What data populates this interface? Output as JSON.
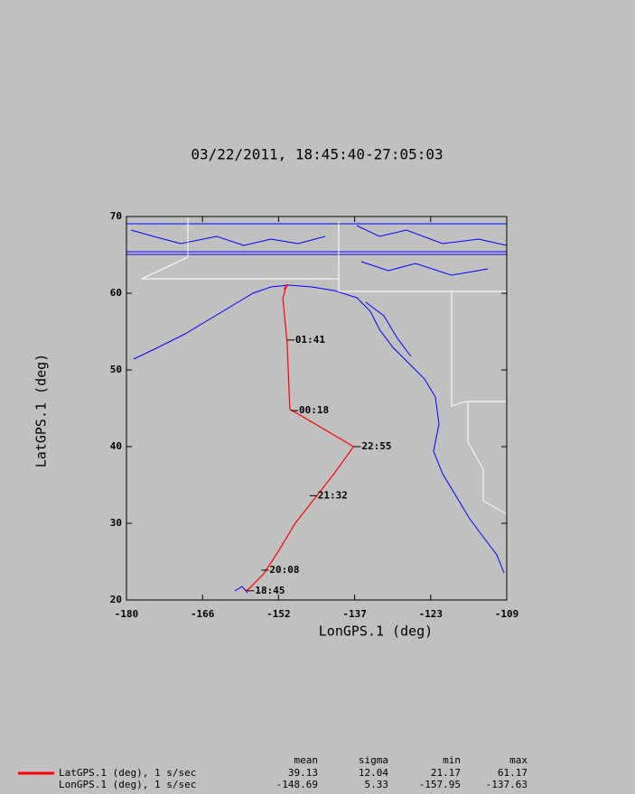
{
  "chart_data": {
    "type": "line",
    "title": "03/22/2011, 18:45:40-27:05:03",
    "x_label": "LonGPS.1 (deg)",
    "y_label": "LatGPS.1 (deg)",
    "xlim": [
      -180,
      -109
    ],
    "ylim": [
      20,
      70
    ],
    "xticks": [
      -180,
      {
        "value": -165.8,
        "label": "-166"
      },
      {
        "value": -151.6,
        "label": "-152"
      },
      {
        "value": -137.4,
        "label": "-137"
      },
      {
        "value": -123.2,
        "label": "-123"
      },
      -109
    ],
    "yticks": [
      20,
      30,
      40,
      50,
      60,
      70
    ],
    "x": [
      -157.9,
      -157.2,
      -154.4,
      -151.5,
      -148.5,
      -141.2,
      -137.6,
      -149.5,
      -150.0,
      -150.8,
      -150.0,
      -150.6
    ],
    "series": [
      {
        "name": "LatGPS.1 (deg), 1 s/sec",
        "color": "#ff0000",
        "values": [
          21.2,
          21.4,
          23.4,
          26.5,
          30.0,
          36.5,
          40.0,
          44.9,
          53.5,
          59.4,
          61.2,
          60.5
        ]
      }
    ],
    "annotations": [
      {
        "text": "18:45",
        "x": -157.5,
        "y": 21.2
      },
      {
        "text": "20:08",
        "x": -154.8,
        "y": 23.9
      },
      {
        "text": "21:32",
        "x": -145.8,
        "y": 33.6
      },
      {
        "text": "22:55",
        "x": -137.6,
        "y": 40.0
      },
      {
        "text": "00:18",
        "x": -149.3,
        "y": 44.7
      },
      {
        "text": "01:41",
        "x": -150.0,
        "y": 53.9
      }
    ],
    "stats": {
      "columns": [
        "mean",
        "sigma",
        "min",
        "max"
      ],
      "rows": [
        {
          "name": "LatGPS.1 (deg), 1 s/sec",
          "color": "#ff0000",
          "values": [
            39.13,
            12.04,
            21.17,
            61.17
          ]
        },
        {
          "name": "LonGPS.1 (deg), 1 s/sec",
          "values": [
            -148.69,
            5.33,
            -157.95,
            -137.63
          ]
        }
      ]
    }
  }
}
